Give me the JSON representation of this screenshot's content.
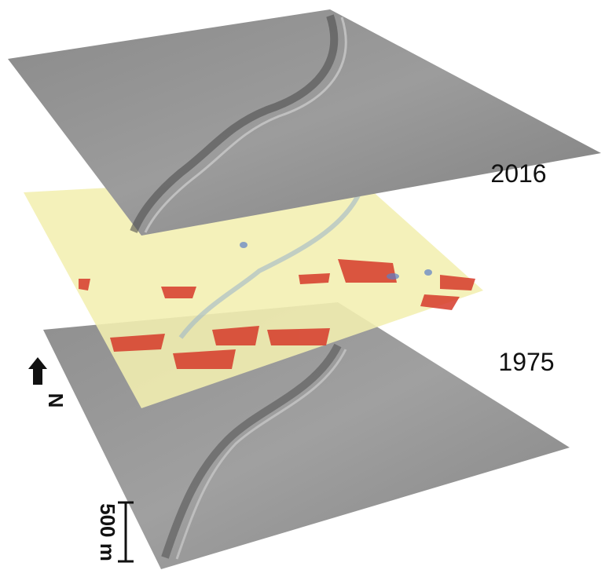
{
  "labels": {
    "top_layer": "2016",
    "bottom_layer": "1975",
    "north": "N",
    "scale": "500 m"
  }
}
